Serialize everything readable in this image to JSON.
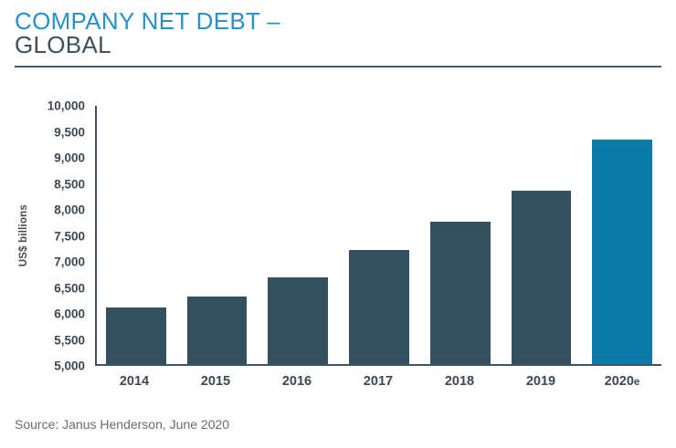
{
  "header": {
    "title_line1": "COMPANY NET DEBT –",
    "title_line2": "GLOBAL"
  },
  "chart_data": {
    "type": "bar",
    "title": "COMPANY NET DEBT – GLOBAL",
    "categories": [
      "2014",
      "2015",
      "2016",
      "2017",
      "2018",
      "2019",
      "2020e"
    ],
    "values": [
      6100,
      6300,
      6675,
      7200,
      7750,
      8350,
      9350
    ],
    "xlabel": "",
    "ylabel": "US$ billions",
    "ylim": [
      5000,
      10000
    ],
    "ytick_step": 500,
    "yticks": [
      "10,000",
      "9,500",
      "9,000",
      "8,500",
      "8,000",
      "7,500",
      "7,000",
      "6,500",
      "6,000",
      "5,500",
      "5,000"
    ],
    "grid": false,
    "legend": false,
    "bar_color": "#344F5E",
    "highlight_color": "#0B7AA6",
    "highlight_index": 6
  },
  "footer": {
    "source": "Source: Janus Henderson, June 2020"
  },
  "colors": {
    "title_accent": "#2591CD",
    "title_dark": "#3E5163",
    "axis": "#3E5263",
    "rule": "#4A5B6A",
    "tick_text": "#3C4854",
    "source_text": "#6A6B6D"
  }
}
